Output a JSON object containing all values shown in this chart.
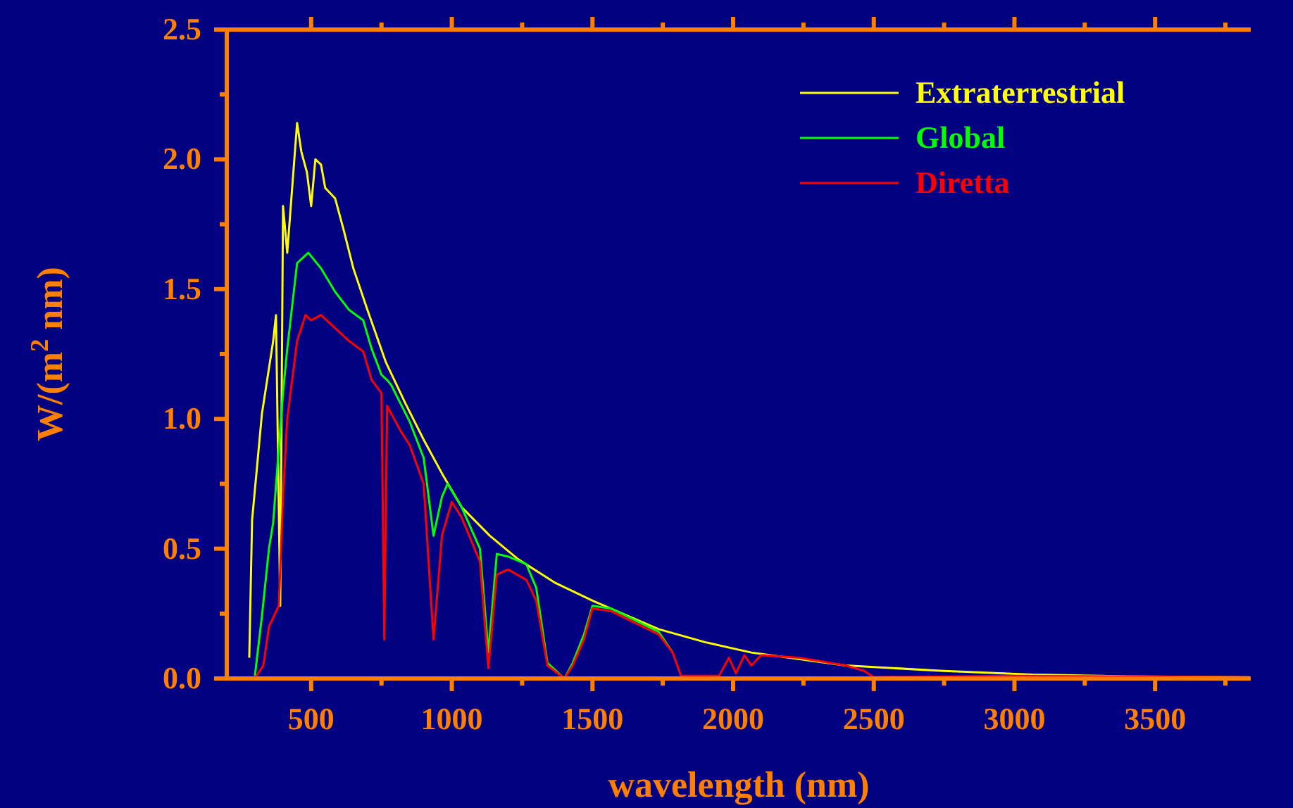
{
  "chart_data": {
    "type": "line",
    "xlabel": "wavelength (nm)",
    "ylabel": "W/(m$^{2}$ nm)",
    "xlim": [
      200,
      3840
    ],
    "ylim": [
      0,
      2.5
    ],
    "xticks": [
      500,
      {
        "value": 750,
        "label": null
      },
      1000,
      {
        "value": 1250,
        "label": null
      },
      1500,
      {
        "value": 1750,
        "label": null
      },
      2000,
      {
        "value": 2250,
        "label": null
      },
      2500,
      {
        "value": 2750,
        "label": null
      },
      3000,
      {
        "value": 3250,
        "label": null
      },
      3500,
      {
        "value": 3750,
        "label": null
      }
    ],
    "yticks": [
      {
        "value": 0,
        "label": "0.0"
      },
      {
        "value": 0.25,
        "label": null
      },
      0.5,
      {
        "value": 0.75,
        "label": null
      },
      {
        "value": 1,
        "label": "1.0"
      },
      {
        "value": 1.25,
        "label": null
      },
      1.5,
      {
        "value": 1.75,
        "label": null
      },
      {
        "value": 2,
        "label": "2.0"
      },
      {
        "value": 2.25,
        "label": null
      },
      2.5
    ],
    "legend": "top right",
    "grid": false,
    "line_style": "solid",
    "series": [
      {
        "name": "Extraterrestrial",
        "color": "#ffff00",
        "x": [
          280,
          290,
          325,
          365,
          375,
          390,
          400,
          415,
          450,
          465,
          485,
          500,
          515,
          535,
          550,
          585,
          615,
          650,
          700,
          765,
          835,
          900,
          965,
          1035,
          1135,
          1235,
          1365,
          1500,
          1735,
          1900,
          2065,
          2400,
          2735,
          3065,
          3400,
          3835
        ],
        "values": [
          0.08,
          0.61,
          1.02,
          1.3,
          1.4,
          0.28,
          1.82,
          1.64,
          2.14,
          2.03,
          1.95,
          1.82,
          2.0,
          1.98,
          1.89,
          1.85,
          1.73,
          1.58,
          1.42,
          1.22,
          1.06,
          0.92,
          0.79,
          0.66,
          0.55,
          0.46,
          0.37,
          0.3,
          0.19,
          0.14,
          0.1,
          0.05,
          0.03,
          0.015,
          0.008,
          0.005
        ]
      },
      {
        "name": "Global",
        "color": "#00ff00",
        "x": [
          300,
          325,
          350,
          365,
          400,
          415,
          450,
          490,
          535,
          585,
          635,
          685,
          715,
          750,
          770,
          785,
          850,
          900,
          935,
          965,
          985,
          1035,
          1100,
          1130,
          1160,
          1200,
          1265,
          1300,
          1340,
          1400,
          1430,
          1470,
          1500,
          1565,
          1735,
          1785
        ],
        "values": [
          0.01,
          0.24,
          0.5,
          0.6,
          1.1,
          1.27,
          1.6,
          1.64,
          1.58,
          1.49,
          1.42,
          1.38,
          1.27,
          1.17,
          1.15,
          1.13,
          0.99,
          0.85,
          0.55,
          0.7,
          0.75,
          0.66,
          0.5,
          0.1,
          0.48,
          0.47,
          0.44,
          0.35,
          0.06,
          0.0,
          0.06,
          0.17,
          0.28,
          0.27,
          0.18,
          0.1
        ]
      },
      {
        "name": "Diretta",
        "color": "#ff0000",
        "x": [
          300,
          330,
          350,
          385,
          400,
          415,
          450,
          480,
          500,
          535,
          585,
          635,
          685,
          715,
          750,
          760,
          770,
          820,
          850,
          900,
          935,
          965,
          1000,
          1035,
          1100,
          1130,
          1160,
          1200,
          1265,
          1300,
          1340,
          1400,
          1430,
          1470,
          1500,
          1565,
          1735,
          1785,
          1815,
          1950,
          1985,
          2010,
          2040,
          2065,
          2100,
          2235,
          2400,
          2465,
          2500,
          3000,
          3835
        ],
        "values": [
          0.0,
          0.05,
          0.2,
          0.28,
          0.7,
          1.0,
          1.3,
          1.4,
          1.38,
          1.4,
          1.35,
          1.3,
          1.26,
          1.15,
          1.1,
          0.15,
          1.05,
          0.95,
          0.9,
          0.75,
          0.15,
          0.55,
          0.68,
          0.62,
          0.45,
          0.04,
          0.4,
          0.42,
          0.38,
          0.3,
          0.05,
          0.0,
          0.05,
          0.15,
          0.27,
          0.26,
          0.17,
          0.1,
          0.01,
          0.01,
          0.08,
          0.02,
          0.09,
          0.05,
          0.09,
          0.08,
          0.05,
          0.03,
          0.005,
          0.01,
          0.005
        ]
      }
    ]
  }
}
